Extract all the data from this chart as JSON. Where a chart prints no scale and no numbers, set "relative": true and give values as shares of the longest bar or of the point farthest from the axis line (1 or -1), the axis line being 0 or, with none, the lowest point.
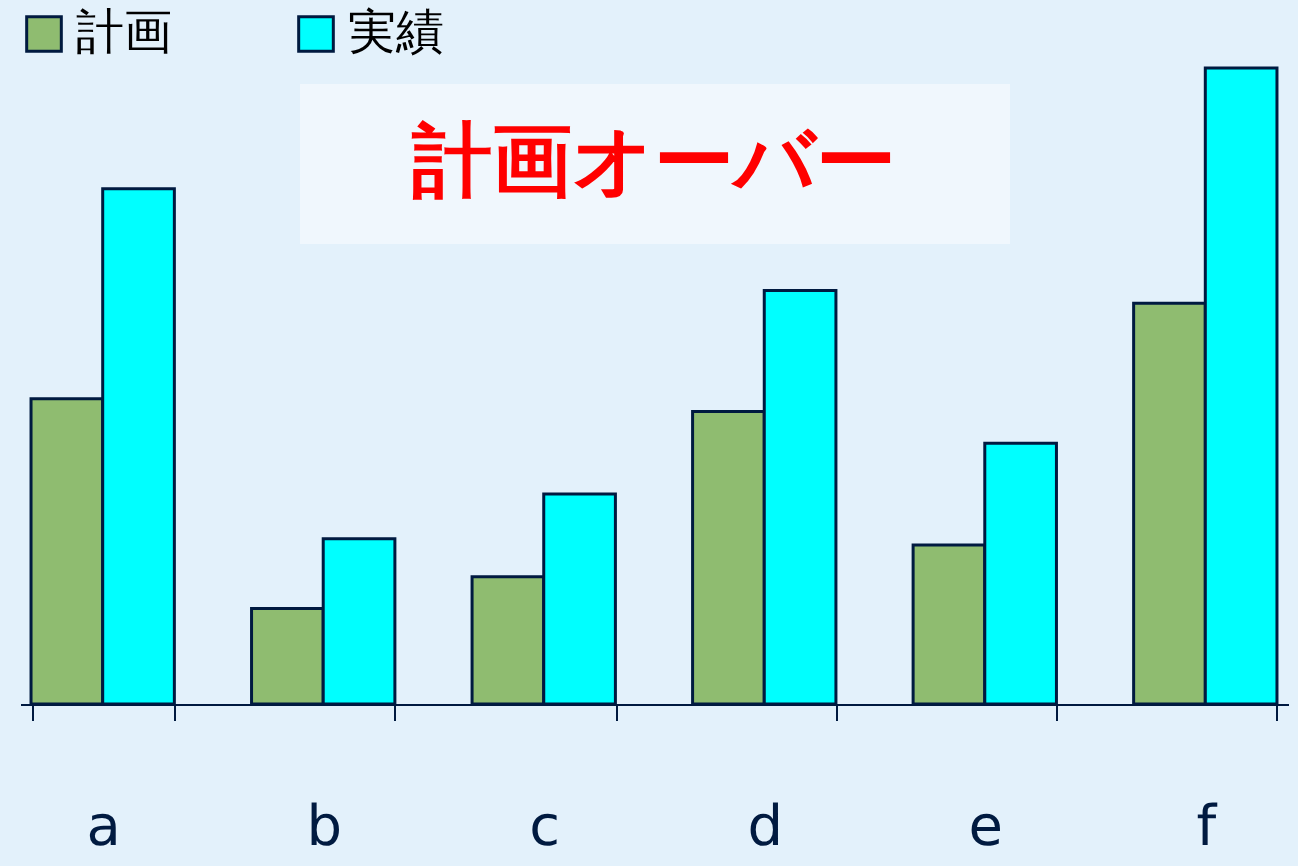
{
  "chart_data": {
    "type": "bar",
    "relative": true,
    "categories": [
      "a",
      "b",
      "c",
      "d",
      "e",
      "f"
    ],
    "series": [
      {
        "name": "計画",
        "color": "#8fbc70",
        "values": [
          0.48,
          0.15,
          0.2,
          0.46,
          0.25,
          0.63
        ]
      },
      {
        "name": "実績",
        "color": "#00ffff",
        "values": [
          0.81,
          0.26,
          0.33,
          0.65,
          0.41,
          1.0
        ]
      }
    ],
    "annotations": [
      "計画オーバー"
    ],
    "legend": "top",
    "grid": false
  }
}
